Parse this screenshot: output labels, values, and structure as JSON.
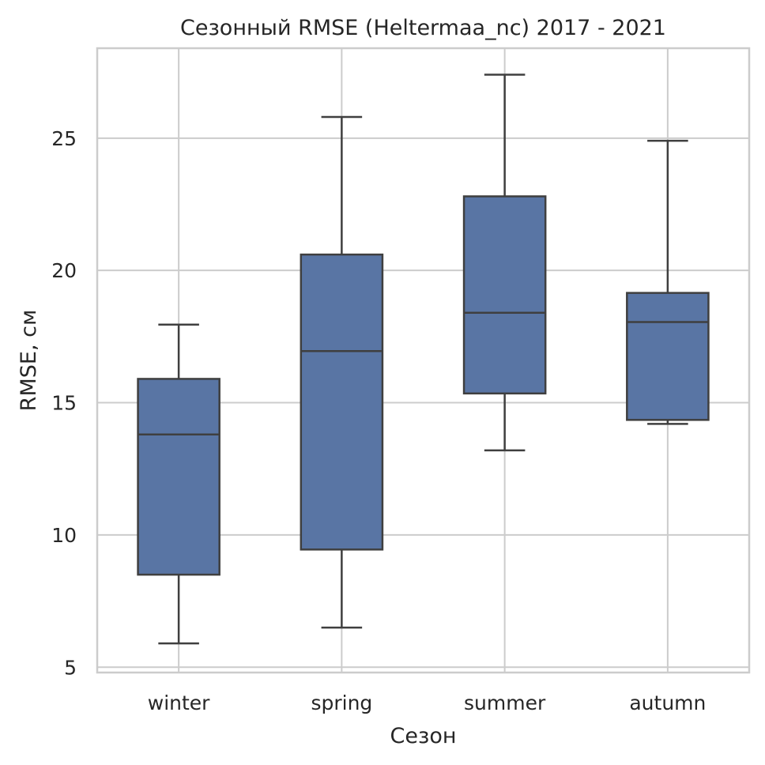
{
  "chart_data": {
    "type": "box",
    "title": "Сезонный RMSE (Heltermaa_nc) 2017 - 2021",
    "xlabel": "Сезон",
    "ylabel": "RMSE, см",
    "categories": [
      "winter",
      "spring",
      "summer",
      "autumn"
    ],
    "boxes": [
      {
        "category": "winter",
        "whisker_low": 5.9,
        "q1": 8.5,
        "median": 13.8,
        "q3": 15.9,
        "whisker_high": 17.95
      },
      {
        "category": "spring",
        "whisker_low": 6.5,
        "q1": 9.45,
        "median": 16.95,
        "q3": 20.6,
        "whisker_high": 25.8
      },
      {
        "category": "summer",
        "whisker_low": 13.2,
        "q1": 15.35,
        "median": 18.4,
        "q3": 22.8,
        "whisker_high": 27.4
      },
      {
        "category": "autumn",
        "whisker_low": 14.2,
        "q1": 14.35,
        "median": 18.05,
        "q3": 19.15,
        "whisker_high": 24.9
      }
    ],
    "ylim": [
      4.8,
      28.4
    ],
    "yticks": [
      5,
      10,
      15,
      20,
      25
    ],
    "grid": true,
    "box_color": "#5975a4",
    "line_color": "#3f3f3f",
    "grid_color": "#cccccc"
  }
}
